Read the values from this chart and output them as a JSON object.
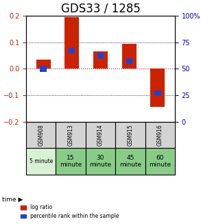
{
  "title": "GDS33 / 1285",
  "categories": [
    "GSM908",
    "GSM913",
    "GSM914",
    "GSM915",
    "GSM916"
  ],
  "time_labels": [
    "5 minute",
    "15\nminute",
    "30\nminute",
    "45\nminute",
    "60\nminute"
  ],
  "log_ratios": [
    0.035,
    0.195,
    0.065,
    0.095,
    -0.145
  ],
  "percentile_ranks": [
    50,
    67,
    62,
    57,
    27
  ],
  "ylim_left": [
    -0.2,
    0.2
  ],
  "ylim_right": [
    0,
    100
  ],
  "bar_width": 0.5,
  "bar_color_red": "#cc2200",
  "bar_color_blue": "#2244cc",
  "zero_line_color": "#cc0000",
  "grid_color": "#000000",
  "title_fontsize": 12,
  "axis_label_color_left": "#cc2200",
  "axis_label_color_right": "#0000cc",
  "table_bg_gsm": "#d3d3d3",
  "table_bg_time_light": "#d4f0d0",
  "table_bg_time_dark": "#88cc88",
  "time_first_label": "5 minute",
  "time_labels_bottom": [
    "5 minute",
    "15\nminute",
    "30\nminute",
    "45\nminute",
    "60\nminute"
  ],
  "time_bg_colors": [
    "#d8f0d4",
    "#88cc88",
    "#88cc88",
    "#88cc88",
    "#88cc88"
  ]
}
